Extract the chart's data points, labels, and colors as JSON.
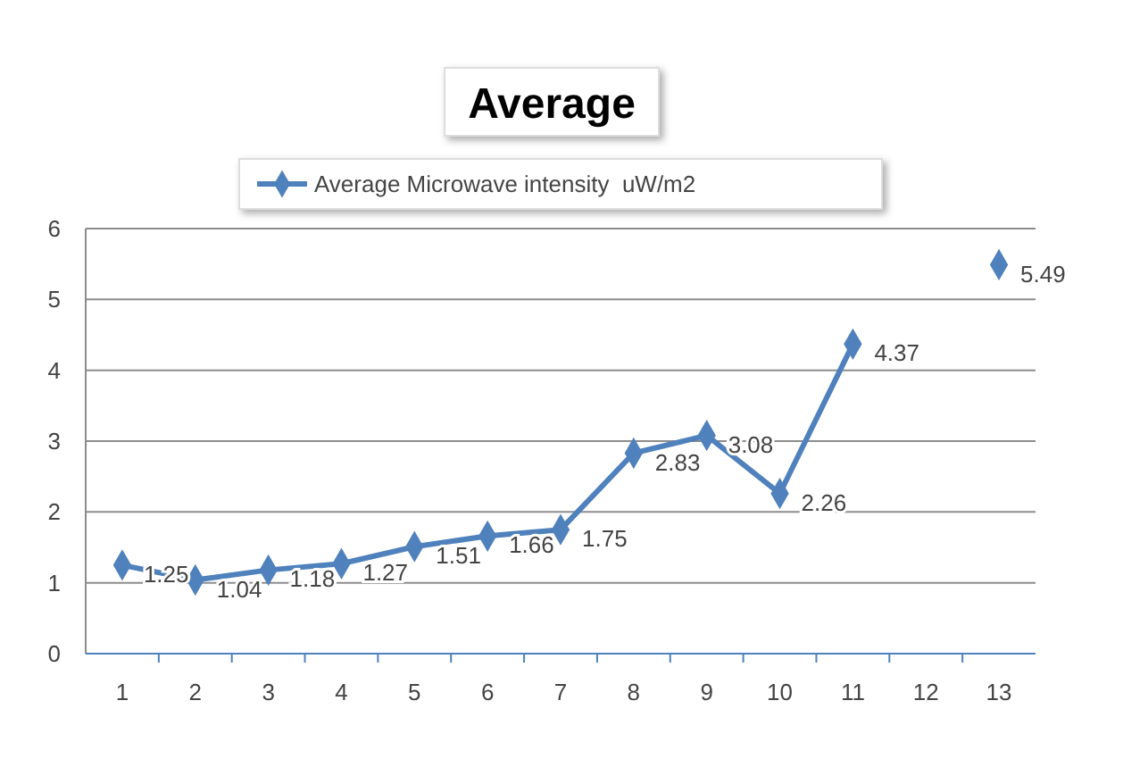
{
  "chart_data": {
    "type": "line",
    "title": "Average",
    "categories": [
      "1",
      "2",
      "3",
      "4",
      "5",
      "6",
      "7",
      "8",
      "9",
      "10",
      "11",
      "12",
      "13"
    ],
    "series": [
      {
        "name": "Average Microwave intensity  uW/m2",
        "color": "#4f81bd",
        "values": [
          1.25,
          1.04,
          1.18,
          1.27,
          1.51,
          1.66,
          1.75,
          2.83,
          3.08,
          2.26,
          4.37,
          null,
          5.49
        ]
      }
    ],
    "ylim": [
      0,
      6
    ],
    "yticks": [
      0,
      1,
      2,
      3,
      4,
      5,
      6
    ],
    "grid": "y",
    "legend": "top",
    "marker": "diamond",
    "line_style": "solid",
    "data_labels": true
  }
}
